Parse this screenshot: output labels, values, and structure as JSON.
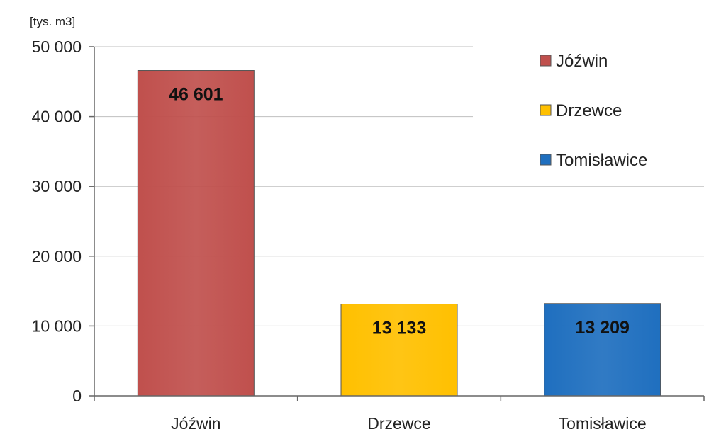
{
  "chart_data": {
    "type": "bar",
    "categories": [
      "Jóźwin",
      "Drzewce",
      "Tomisławice"
    ],
    "values": [
      46601,
      13133,
      13209
    ],
    "value_labels": [
      "46 601",
      "13 133",
      "13 209"
    ],
    "colors": [
      "#c0504d",
      "#ffc000",
      "#1f6fbf"
    ],
    "ylabel": "[tys. m3]",
    "ylim": [
      0,
      50000
    ],
    "yticks": [
      0,
      10000,
      20000,
      30000,
      40000,
      50000
    ],
    "ytick_labels": [
      "0",
      "10 000",
      "20 000",
      "30 000",
      "40 000",
      "50 000"
    ],
    "grid": true,
    "legend": {
      "placement": "top-right",
      "entries": [
        "Jóźwin",
        "Drzewce",
        "Tomisławice"
      ]
    }
  }
}
